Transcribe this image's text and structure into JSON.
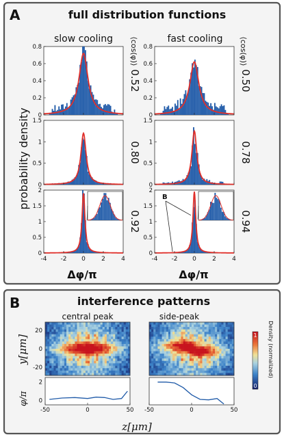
{
  "panel_a": {
    "letter": "A",
    "title": "full distribution functions",
    "col_left": "slow cooling",
    "col_right": "fast cooling",
    "ylabel": "probability density",
    "xlabel": "Δφ/π",
    "cos_label": "⟨cos(φ)⟩",
    "marker_b": "B"
  },
  "panel_b": {
    "letter": "B",
    "title": "interference patterns",
    "left_title": "central peak",
    "right_title": "side-peak",
    "ylabel": "y[μm]",
    "phase_label": "φ/π",
    "xlabel": "z[μm]",
    "colorbar_label": "Density (normalized)",
    "colorbar_ticks": [
      "1",
      "0"
    ]
  },
  "chart_data": [
    {
      "type": "bar",
      "description": "histogram of phase difference with red fitted curve, 3 rows x 2 columns",
      "xlim": [
        -4,
        4
      ],
      "xticks": [
        "-4",
        "-2",
        "0",
        "2",
        "4"
      ],
      "bar_color": "#1f5aa8",
      "fit_color": "#e0302b",
      "panels": [
        {
          "col": "slow cooling",
          "row": 1,
          "cos_value": "0.52",
          "ylim": [
            0,
            0.8
          ],
          "yticks": [
            "0",
            "0.2",
            "0.4",
            "0.6",
            "0.8"
          ],
          "peak": 0.72,
          "fit_width": 0.55,
          "noise": 0.1,
          "inset": false
        },
        {
          "col": "fast cooling",
          "row": 1,
          "cos_value": "0.50",
          "ylim": [
            0,
            0.8
          ],
          "yticks": [
            "0",
            "0.2",
            "0.4",
            "0.6",
            "0.8"
          ],
          "peak": 0.62,
          "fit_width": 0.55,
          "noise": 0.12,
          "inset": false
        },
        {
          "col": "slow cooling",
          "row": 2,
          "cos_value": "0.80",
          "ylim": [
            0,
            1.5
          ],
          "yticks": [
            "0",
            "0.5",
            "1",
            "1.5"
          ],
          "peak": 1.2,
          "fit_width": 0.32,
          "noise": 0.02,
          "inset": false
        },
        {
          "col": "fast cooling",
          "row": 2,
          "cos_value": "0.78",
          "ylim": [
            0,
            1.5
          ],
          "yticks": [
            "0",
            "0.5",
            "1",
            "1.5"
          ],
          "peak": 1.25,
          "fit_width": 0.3,
          "noise": 0.06,
          "inset": false
        },
        {
          "col": "slow cooling",
          "row": 3,
          "cos_value": "0.92",
          "ylim": [
            0,
            2
          ],
          "yticks": [
            "0",
            "0.5",
            "1",
            "1.5",
            "2"
          ],
          "peak": 1.9,
          "fit_width": 0.18,
          "noise": 0.0,
          "inset": true
        },
        {
          "col": "fast cooling",
          "row": 3,
          "cos_value": "0.94",
          "ylim": [
            0,
            2
          ],
          "yticks": [
            "0",
            "0.5",
            "1",
            "1.5",
            "2"
          ],
          "peak": 1.95,
          "fit_width": 0.17,
          "noise": 0.0,
          "inset": true
        }
      ]
    },
    {
      "type": "heatmap",
      "description": "interference pattern density images, z from -50 to 50 μm",
      "xlim": [
        -50,
        50
      ],
      "xticks": [
        "-50",
        "0",
        "50"
      ],
      "yticks": [
        "20",
        "0",
        "-20"
      ],
      "phase_yticks": [
        "2",
        "0"
      ],
      "phase_ylim": [
        -0.5,
        2.5
      ],
      "panels": [
        {
          "name": "central peak",
          "phase_z": [
            -45,
            -30,
            -15,
            0,
            10,
            20,
            30,
            40,
            47
          ],
          "phase": [
            0.1,
            0.25,
            0.3,
            0.2,
            0.35,
            0.3,
            0.1,
            0.2,
            1.0
          ]
        },
        {
          "name": "side-peak",
          "phase_z": [
            -40,
            -30,
            -20,
            -10,
            0,
            10,
            20,
            30,
            38
          ],
          "phase": [
            2.0,
            2.0,
            1.9,
            1.4,
            0.6,
            0.1,
            0.05,
            0.2,
            -0.4
          ]
        }
      ]
    }
  ]
}
